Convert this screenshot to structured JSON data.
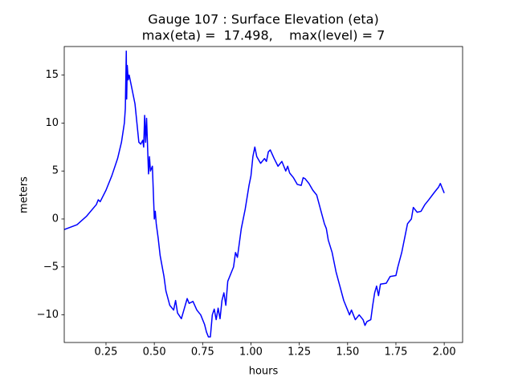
{
  "chart_data": {
    "type": "line",
    "title": "Gauge 107 : Surface Elevation (eta)",
    "subtitle": "max(eta) =  17.498,    max(level) = 7",
    "x_label": "hours",
    "y_label": "meters",
    "xlim": [
      0.034,
      2.095
    ],
    "ylim": [
      -12.88,
      17.98
    ],
    "xticks": [
      0.25,
      {
        "value": 0.5,
        "label": "0.50"
      },
      0.75,
      {
        "value": 1.0,
        "label": "1.00"
      },
      1.25,
      {
        "value": 1.5,
        "label": "1.50"
      },
      1.75,
      {
        "value": 2.0,
        "label": "2.00"
      }
    ],
    "yticks": [
      {
        "value": -10,
        "label": "−10"
      },
      {
        "value": -5,
        "label": "−5"
      },
      0,
      5,
      10,
      15
    ],
    "series": [
      {
        "color": "#0000ff",
        "x": [
          0.034,
          0.1,
          0.15,
          0.2,
          0.21,
          0.22,
          0.25,
          0.28,
          0.31,
          0.33,
          0.345,
          0.35,
          0.355,
          0.357,
          0.36,
          0.365,
          0.37,
          0.38,
          0.4,
          0.41,
          0.42,
          0.43,
          0.44,
          0.445,
          0.45,
          0.455,
          0.46,
          0.47,
          0.475,
          0.48,
          0.49,
          0.5,
          0.505,
          0.51,
          0.52,
          0.53,
          0.55,
          0.56,
          0.58,
          0.6,
          0.61,
          0.62,
          0.64,
          0.66,
          0.67,
          0.68,
          0.7,
          0.72,
          0.74,
          0.76,
          0.77,
          0.78,
          0.79,
          0.8,
          0.81,
          0.82,
          0.83,
          0.84,
          0.85,
          0.86,
          0.87,
          0.88,
          0.9,
          0.91,
          0.92,
          0.93,
          0.95,
          0.97,
          0.99,
          1.0,
          1.01,
          1.02,
          1.03,
          1.05,
          1.07,
          1.08,
          1.09,
          1.1,
          1.12,
          1.14,
          1.16,
          1.18,
          1.19,
          1.2,
          1.22,
          1.24,
          1.26,
          1.27,
          1.28,
          1.3,
          1.32,
          1.34,
          1.36,
          1.38,
          1.39,
          1.4,
          1.42,
          1.44,
          1.46,
          1.48,
          1.5,
          1.51,
          1.52,
          1.54,
          1.56,
          1.58,
          1.59,
          1.6,
          1.62,
          1.63,
          1.64,
          1.65,
          1.66,
          1.67,
          1.7,
          1.72,
          1.75,
          1.76,
          1.78,
          1.8,
          1.81,
          1.83,
          1.84,
          1.86,
          1.88,
          1.9,
          1.92,
          1.95,
          1.97,
          1.98,
          1.99,
          2.0
        ],
        "values": [
          -1.1,
          -0.6,
          0.3,
          1.5,
          2.0,
          1.8,
          3.0,
          4.5,
          6.3,
          8,
          10,
          11.5,
          17.5,
          12.5,
          16,
          14.5,
          15,
          14,
          12,
          10,
          8,
          7.8,
          8.2,
          7.5,
          10.8,
          8,
          10.5,
          4.7,
          6.5,
          5,
          5.5,
          0,
          0.8,
          -0.5,
          -2,
          -3.8,
          -6,
          -7.5,
          -9,
          -9.5,
          -8.5,
          -9.8,
          -10.4,
          -9,
          -8.3,
          -8.8,
          -8.6,
          -9.5,
          -10,
          -11,
          -11.8,
          -12.3,
          -12.3,
          -10,
          -9.4,
          -10.5,
          -9.3,
          -10.4,
          -8.5,
          -7.7,
          -9,
          -6.5,
          -5.5,
          -5,
          -3.5,
          -4,
          -1,
          1,
          3.5,
          4.5,
          6.5,
          7.5,
          6.5,
          5.8,
          6.3,
          6,
          7,
          7.2,
          6.3,
          5.5,
          6,
          5,
          5.5,
          4.8,
          4.3,
          3.6,
          3.5,
          4.3,
          4.2,
          3.7,
          3,
          2.5,
          1,
          -0.5,
          -1,
          -2.2,
          -3.5,
          -5.5,
          -7,
          -8.5,
          -9.5,
          -10,
          -9.5,
          -10.5,
          -10,
          -10.5,
          -11.1,
          -10.7,
          -10.5,
          -9,
          -7.7,
          -7,
          -8,
          -6.8,
          -6.7,
          -6,
          -5.9,
          -5,
          -3.5,
          -1.5,
          -0.5,
          0,
          1.2,
          0.7,
          0.8,
          1.5,
          2,
          2.8,
          3.3,
          3.7,
          3.2,
          2.7
        ]
      }
    ]
  }
}
